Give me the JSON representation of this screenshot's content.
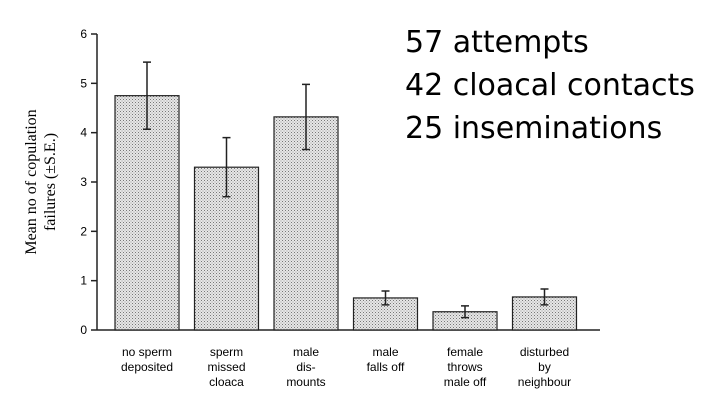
{
  "chart_data": {
    "type": "bar",
    "ylabel": [
      "Mean no of copulation",
      "failures (±S.E.)"
    ],
    "annotations": [
      "57 attempts",
      "42 cloacal contacts",
      "25 inseminations"
    ],
    "categories": [
      [
        "no sperm",
        "deposited"
      ],
      [
        "sperm",
        "missed",
        "cloaca"
      ],
      [
        "male",
        "dis-",
        "mounts"
      ],
      [
        "male",
        "falls off"
      ],
      [
        "female",
        "throws",
        "male off"
      ],
      [
        "disturbed",
        "by",
        "neighbour"
      ]
    ],
    "values": [
      4.75,
      3.3,
      4.32,
      0.65,
      0.37,
      0.67
    ],
    "errors": [
      0.68,
      0.6,
      0.66,
      0.14,
      0.12,
      0.16
    ],
    "color": "#d4d4d4",
    "ylim": [
      0,
      6
    ],
    "yticks": [
      0,
      1,
      2,
      3,
      4,
      5,
      6
    ]
  }
}
